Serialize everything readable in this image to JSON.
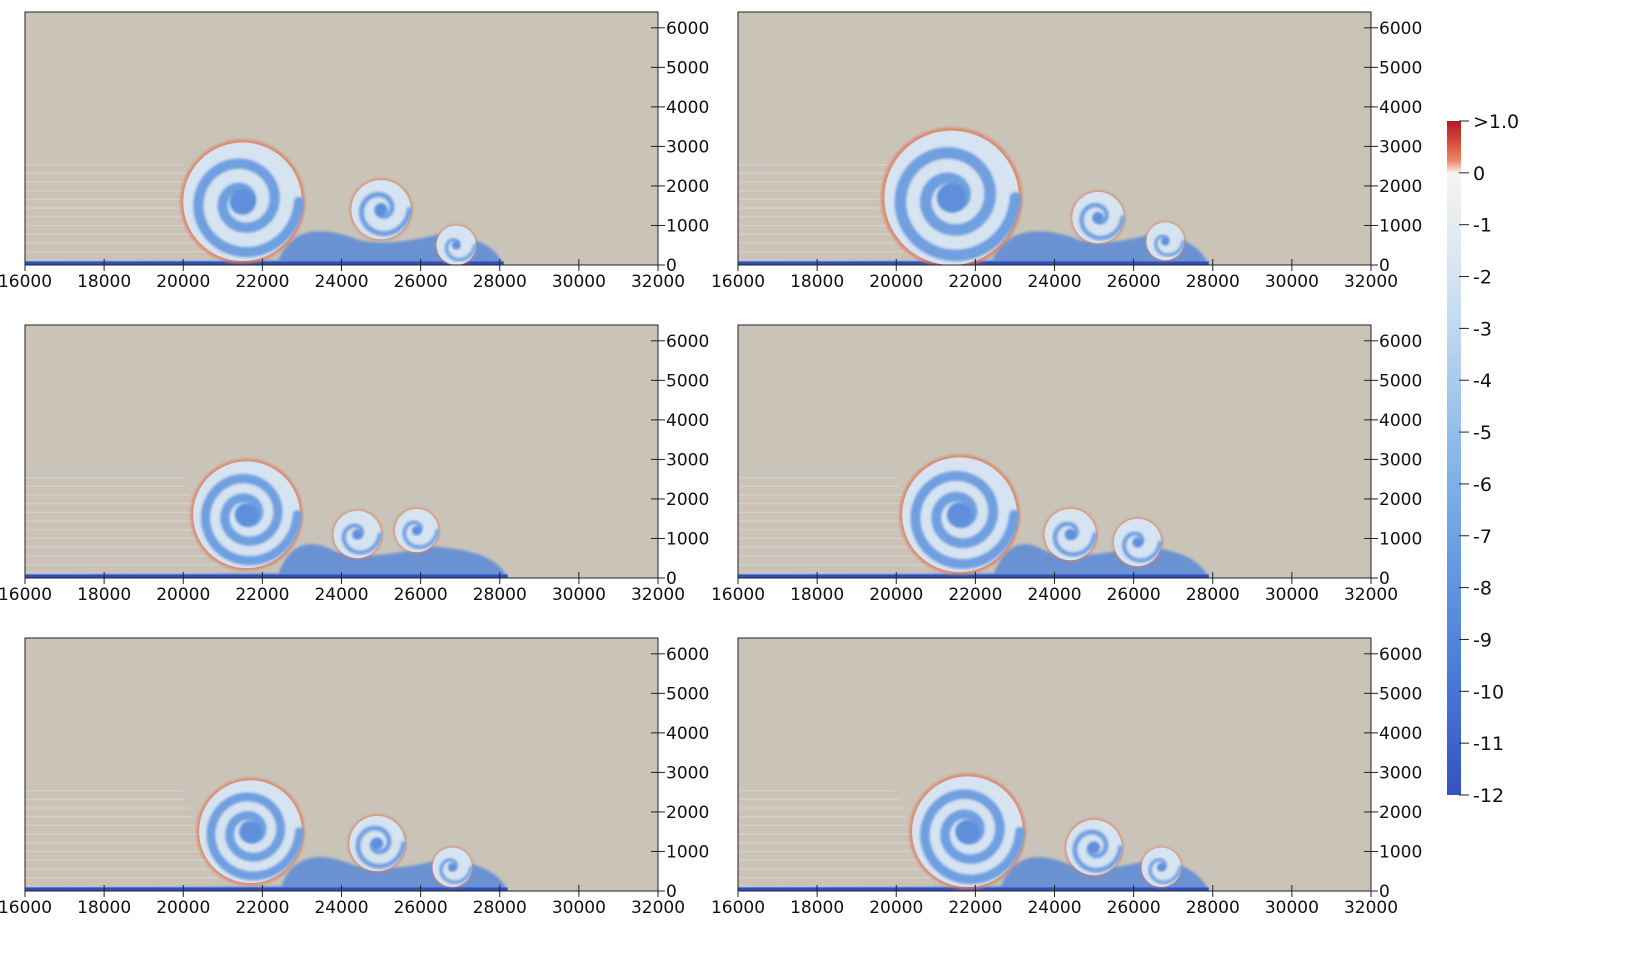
{
  "chart_data": {
    "type": "heatmap",
    "field_description_note": "",
    "panels": [
      {
        "id": "panel-1",
        "row": 1,
        "col": 1,
        "eddies": [
          {
            "x": 21500,
            "z": 1600,
            "r": 1500,
            "turns": 2.3
          },
          {
            "x": 25000,
            "z": 1400,
            "r": 750,
            "turns": 1.6
          },
          {
            "x": 26900,
            "z": 500,
            "r": 500,
            "turns": 1.0
          }
        ],
        "front_x": 28100
      },
      {
        "id": "panel-2",
        "row": 1,
        "col": 2,
        "eddies": [
          {
            "x": 21400,
            "z": 1700,
            "r": 1700,
            "turns": 2.5
          },
          {
            "x": 25100,
            "z": 1200,
            "r": 650,
            "turns": 1.5
          },
          {
            "x": 26800,
            "z": 600,
            "r": 480,
            "turns": 1.0
          }
        ],
        "front_x": 27900
      },
      {
        "id": "panel-3",
        "row": 2,
        "col": 1,
        "eddies": [
          {
            "x": 21600,
            "z": 1600,
            "r": 1350,
            "turns": 2.6
          },
          {
            "x": 24400,
            "z": 1100,
            "r": 600,
            "turns": 1.2
          },
          {
            "x": 25900,
            "z": 1200,
            "r": 550,
            "turns": 1.2
          }
        ],
        "front_x": 28200
      },
      {
        "id": "panel-4",
        "row": 2,
        "col": 2,
        "eddies": [
          {
            "x": 21600,
            "z": 1600,
            "r": 1450,
            "turns": 2.6
          },
          {
            "x": 24400,
            "z": 1100,
            "r": 650,
            "turns": 1.3
          },
          {
            "x": 26100,
            "z": 900,
            "r": 600,
            "turns": 1.2
          }
        ],
        "front_x": 27900
      },
      {
        "id": "panel-5",
        "row": 3,
        "col": 1,
        "eddies": [
          {
            "x": 21700,
            "z": 1500,
            "r": 1300,
            "turns": 2.6
          },
          {
            "x": 24900,
            "z": 1200,
            "r": 700,
            "turns": 1.8
          },
          {
            "x": 26800,
            "z": 600,
            "r": 500,
            "turns": 1.2
          }
        ],
        "front_x": 28200
      },
      {
        "id": "panel-6",
        "row": 3,
        "col": 2,
        "eddies": [
          {
            "x": 21800,
            "z": 1500,
            "r": 1400,
            "turns": 2.6
          },
          {
            "x": 25000,
            "z": 1100,
            "r": 700,
            "turns": 1.8
          },
          {
            "x": 26700,
            "z": 600,
            "r": 500,
            "turns": 1.2
          }
        ],
        "front_x": 27900
      }
    ],
    "x_axis": {
      "range": [
        16000,
        32000
      ],
      "ticks": [
        "16000",
        "18000",
        "20000",
        "22000",
        "24000",
        "26000",
        "28000",
        "30000",
        "32000"
      ],
      "tick_values": [
        16000,
        18000,
        20000,
        22000,
        24000,
        26000,
        28000,
        30000,
        32000
      ]
    },
    "y_axis": {
      "range": [
        0,
        6400
      ],
      "side": "right",
      "ticks": [
        "0",
        "1000",
        "2000",
        "3000",
        "4000",
        "5000",
        "6000"
      ],
      "tick_values": [
        0,
        1000,
        2000,
        3000,
        4000,
        5000,
        6000
      ]
    },
    "colorbar": {
      "range": [
        -12,
        1.0
      ],
      "labels": [
        ">1.0",
        "0",
        "-1",
        "-2",
        "-3",
        "-4",
        "-5",
        "-6",
        "-7",
        "-8",
        "-9",
        "-10",
        "-11",
        "-12"
      ],
      "label_values": [
        1.0,
        0,
        -1,
        -2,
        -3,
        -4,
        -5,
        -6,
        -7,
        -8,
        -9,
        -10,
        -11,
        -12
      ],
      "colors": {
        "max": "#b4192a",
        "mid_positive": "#ee8a6a",
        "zero": "#f7f3ef",
        "light_negative": "#d0e2f2",
        "mid_negative": "#7aaee6",
        "min": "#3452c2"
      }
    },
    "background_color": "#c9c3b8",
    "grid": false
  }
}
